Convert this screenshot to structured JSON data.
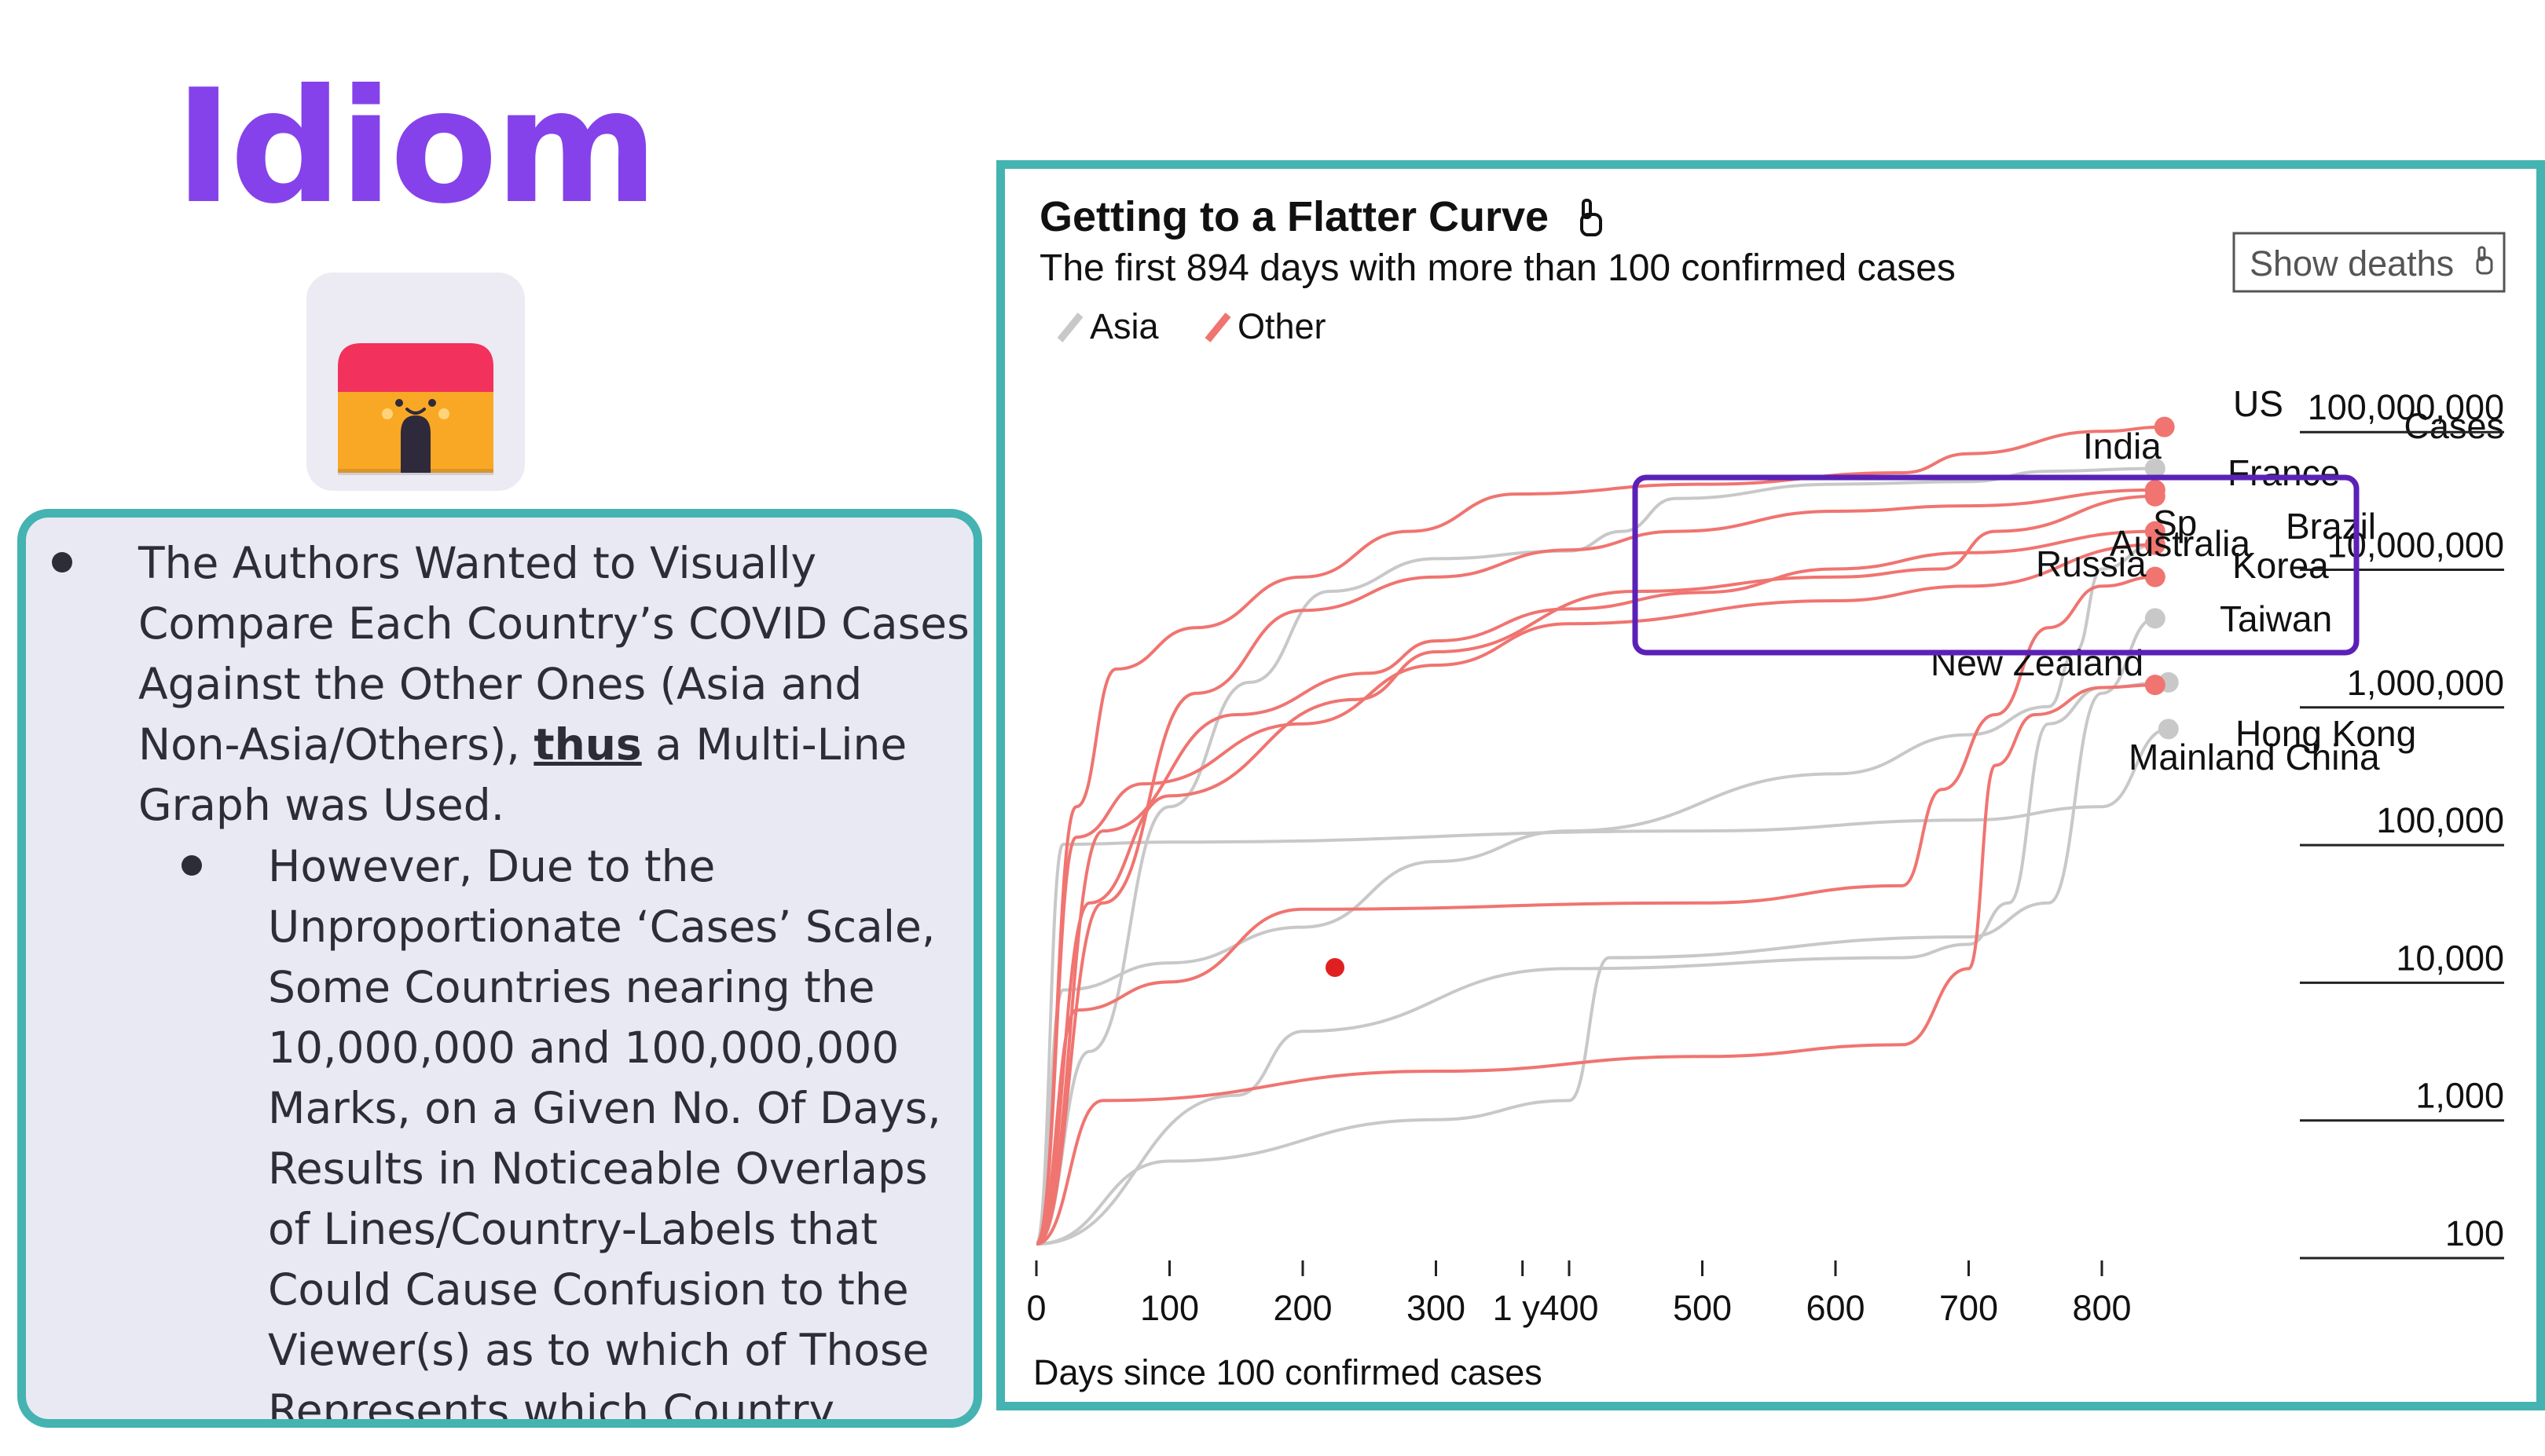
{
  "slide": {
    "title": "Idiom",
    "bullet_1": {
      "text_before": "The Authors Wanted to Visually Compare Each Country’s COVID Cases Against the Other Ones (Asia and Non-Asia/Others), ",
      "emphasis": "thus",
      "text_after": " a Multi-Line Graph was Used."
    },
    "bullet_2": "However, Due to the Unproportionate ‘Cases’ Scale, Some Countries nearing the 10,000,000 and 100,000,000 Marks, on a Given No. Of Days, Results in Noticeable Overlaps of Lines/Country-Labels that Could Cause Confusion to the Viewer(s) as to which of Those Represents which Country.",
    "icon": "house-face-icon",
    "colors": {
      "title": "#8542ea",
      "panel_border": "#44b3b1",
      "highlight_box": "#5b21b6"
    }
  },
  "chart": {
    "title": "Getting to a Flatter Curve",
    "subtitle": "The first 894 days with more than 100 confirmed cases",
    "button_label": "Show deaths",
    "legend": [
      {
        "label": "Asia",
        "color": "#c8c8c8"
      },
      {
        "label": "Other",
        "color": "#f07470"
      }
    ],
    "x_label": "Days since 100 confirmed cases",
    "y_label": "Cases",
    "x_annotation": "1 y",
    "country_labels": [
      "US",
      "India",
      "France",
      "Brazil",
      "Sp",
      "Australia",
      "Russia",
      "Korea",
      "Taiwan",
      "New Zealand",
      "Hong Kong",
      "Mainland China"
    ]
  },
  "chart_data": {
    "type": "line",
    "title": "Getting to a Flatter Curve",
    "subtitle": "The first 894 days with more than 100 confirmed cases",
    "xlabel": "Days since 100 confirmed cases",
    "ylabel": "Cases",
    "x_ticks": [
      0,
      100,
      200,
      300,
      400,
      500,
      600,
      700,
      800
    ],
    "y_ticks": [
      100,
      1000,
      10000,
      100000,
      1000000,
      10000000,
      100000000
    ],
    "y_tick_labels": [
      "100",
      "1,000",
      "10,000",
      "100,000",
      "1,000,000",
      "10,000,000",
      "100,000,000"
    ],
    "y_scale": "log",
    "xlim": [
      0,
      894
    ],
    "ylim": [
      100,
      400000000
    ],
    "legend_position": "top-left",
    "series": [
      {
        "name": "US",
        "group": "Other",
        "x": [
          0,
          30,
          60,
          120,
          200,
          280,
          360,
          500,
          650,
          700,
          800,
          847
        ],
        "y": [
          100,
          150000,
          1500000,
          3000000,
          7000000,
          15000000,
          28000000,
          33000000,
          40000000,
          55000000,
          80000000,
          86000000
        ]
      },
      {
        "name": "India",
        "group": "Asia",
        "x": [
          0,
          40,
          100,
          160,
          220,
          300,
          400,
          440,
          480,
          600,
          700,
          760,
          840
        ],
        "y": [
          100,
          2500,
          150000,
          1200000,
          5500000,
          9500000,
          10800000,
          15000000,
          26000000,
          33000000,
          34500000,
          41000000,
          43000000
        ]
      },
      {
        "name": "France",
        "group": "Other",
        "x": [
          0,
          40,
          100,
          240,
          300,
          450,
          600,
          680,
          720,
          840
        ],
        "y": [
          100,
          30000,
          180000,
          900000,
          2000000,
          5500000,
          7000000,
          8000000,
          15000000,
          27000000
        ]
      },
      {
        "name": "Brazil",
        "group": "Other",
        "x": [
          0,
          50,
          120,
          200,
          300,
          400,
          480,
          600,
          700,
          840
        ],
        "y": [
          100,
          30000,
          1000000,
          4000000,
          7000000,
          11000000,
          15000000,
          21000000,
          23000000,
          30000000
        ]
      },
      {
        "name": "Sp",
        "group": "Other",
        "x": [
          0,
          30,
          80,
          200,
          300,
          400,
          600,
          700,
          840
        ],
        "y": [
          100,
          90000,
          220000,
          600000,
          1600000,
          3200000,
          4700000,
          6000000,
          12000000
        ]
      },
      {
        "name": "Russia",
        "group": "Other",
        "x": [
          0,
          50,
          150,
          250,
          300,
          400,
          500,
          600,
          700,
          840
        ],
        "y": [
          100,
          100000,
          700000,
          1400000,
          2400000,
          4100000,
          5400000,
          8000000,
          10500000,
          15000000
        ]
      },
      {
        "name": "Australia",
        "group": "Other",
        "x": [
          0,
          30,
          100,
          200,
          500,
          650,
          680,
          720,
          760,
          800,
          840
        ],
        "y": [
          100,
          5000,
          8000,
          27000,
          30000,
          40000,
          200000,
          700000,
          3000000,
          6000000,
          7000000
        ]
      },
      {
        "name": "Korea",
        "group": "Asia",
        "x": [
          0,
          20,
          100,
          200,
          300,
          400,
          600,
          700,
          760,
          780,
          800,
          840
        ],
        "y": [
          100,
          7000,
          11000,
          20000,
          60000,
          100000,
          260000,
          500000,
          800000,
          2000000,
          8000000,
          12000000
        ]
      },
      {
        "name": "Taiwan",
        "group": "Asia",
        "x": [
          0,
          100,
          300,
          400,
          430,
          700,
          760,
          800,
          840
        ],
        "y": [
          100,
          400,
          800,
          1100,
          12000,
          17000,
          30000,
          1000000,
          3500000
        ]
      },
      {
        "name": "New Zealand",
        "group": "Other",
        "x": [
          0,
          50,
          300,
          500,
          650,
          700,
          720,
          750,
          800,
          840
        ],
        "y": [
          100,
          1100,
          1800,
          2300,
          2800,
          10000,
          300000,
          700000,
          1100000,
          1150000
        ]
      },
      {
        "name": "Hong Kong",
        "group": "Asia",
        "x": [
          0,
          150,
          200,
          400,
          650,
          700,
          730,
          760,
          800,
          850
        ],
        "y": [
          100,
          1200,
          3500,
          10000,
          12000,
          15000,
          30000,
          600000,
          1100000,
          1200000
        ]
      },
      {
        "name": "Mainland China",
        "group": "Asia",
        "x": [
          0,
          20,
          100,
          500,
          700,
          800,
          850
        ],
        "y": [
          100,
          80000,
          83000,
          100000,
          120000,
          150000,
          550000
        ]
      }
    ],
    "annotations": [
      {
        "text": "1 y",
        "x": 365
      },
      {
        "text": "Cases",
        "position": "top-right"
      }
    ]
  }
}
